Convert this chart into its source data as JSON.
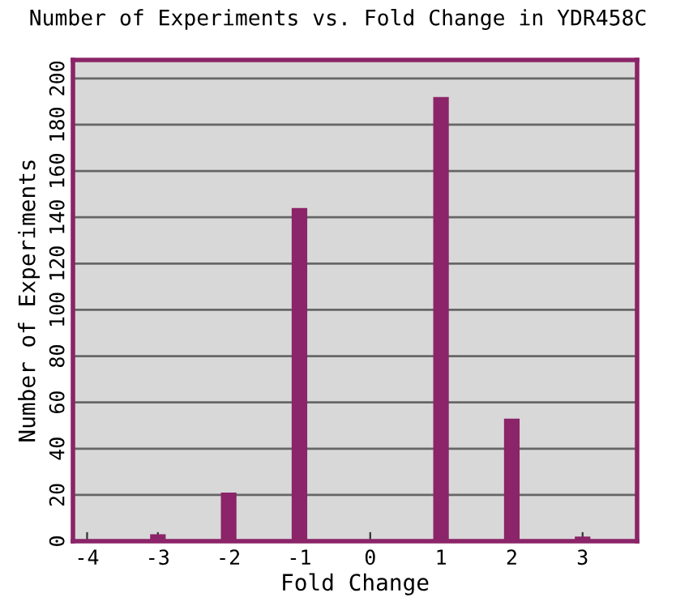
{
  "chart_data": {
    "type": "bar",
    "title": "Number of Experiments vs. Fold Change in YDR458C",
    "xlabel": "Fold Change",
    "ylabel": "Number of Experiments",
    "x": [
      -3,
      -2,
      -1,
      1,
      2,
      3
    ],
    "values": [
      3,
      21,
      144,
      192,
      53,
      2
    ],
    "color": "#8b2468",
    "xlim": [
      -4.2,
      3.77
    ],
    "xticks": [
      -4,
      -3,
      -2,
      -1,
      0,
      1,
      2,
      3
    ],
    "ylim": [
      0,
      208
    ],
    "yticks": [
      0,
      20,
      40,
      60,
      80,
      100,
      120,
      140,
      160,
      180,
      200
    ],
    "grid": "y"
  }
}
